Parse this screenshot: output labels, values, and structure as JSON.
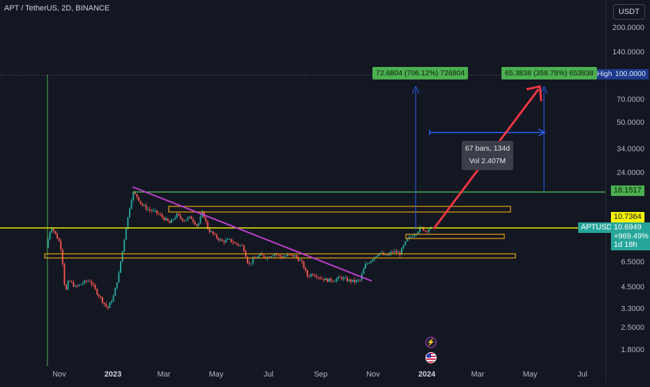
{
  "header": {
    "title": "APT / TetherUS, 2D, BINANCE"
  },
  "currency_button": "USDT",
  "y_axis_ticks": [
    {
      "label": "200.0000",
      "v": 200
    },
    {
      "label": "140.0000",
      "v": 140
    },
    {
      "label": "100.0000",
      "v": 100
    },
    {
      "label": "70.0000",
      "v": 70
    },
    {
      "label": "50.0000",
      "v": 50
    },
    {
      "label": "34.0000",
      "v": 34
    },
    {
      "label": "24.0000",
      "v": 24
    },
    {
      "label": "6.5000",
      "v": 6.5
    },
    {
      "label": "4.5000",
      "v": 4.5
    },
    {
      "label": "3.3000",
      "v": 3.3
    },
    {
      "label": "2.5000",
      "v": 2.5
    },
    {
      "label": "1.8000",
      "v": 1.8
    }
  ],
  "x_axis_ticks": [
    {
      "label": "Nov",
      "bold": false
    },
    {
      "label": "2023",
      "bold": true
    },
    {
      "label": "Mar",
      "bold": false
    },
    {
      "label": "May",
      "bold": false
    },
    {
      "label": "Jul",
      "bold": false
    },
    {
      "label": "Sep",
      "bold": false
    },
    {
      "label": "Nov",
      "bold": false
    },
    {
      "label": "2024",
      "bold": true
    },
    {
      "label": "Mar",
      "bold": false
    },
    {
      "label": "May",
      "bold": false
    },
    {
      "label": "Jul",
      "bold": false
    }
  ],
  "price_labels": {
    "high_tag": "High",
    "high_value": "100.0000",
    "resistance_green": "18.1517",
    "resistance_yellow": "10.7364",
    "symbol": "APTUSDT",
    "last_price": "10.6949",
    "change": "+969.49%",
    "countdown": "1d 18h"
  },
  "measurements": {
    "left": "72.6804 (706.12%) 726804",
    "right": "65.3838 (358.78%) 653838"
  },
  "tooltip": {
    "line1": "67 bars, 134d",
    "line2": "Vol 2.407M"
  },
  "colors": {
    "background": "#131722",
    "up": "#26a69a",
    "down": "#ef5350",
    "yellow_line": "#f5f200",
    "green_line": "#4caf50",
    "trend": "#c23fd1",
    "zone": "#f0a30a",
    "arrow": "#f23645",
    "measure_blue": "#2962ff"
  },
  "icons": [
    "lightning-icon",
    "us-flag-icon"
  ]
}
